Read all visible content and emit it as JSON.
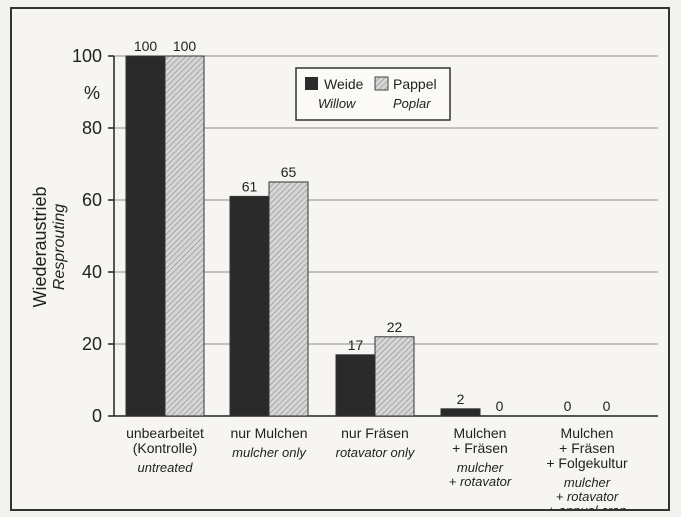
{
  "chart_data": {
    "type": "bar",
    "categories": [
      {
        "lines": [
          "unbearbeitet",
          "(Kontrolle)"
        ],
        "italic": [
          "untreated"
        ]
      },
      {
        "lines": [
          "nur Mulchen"
        ],
        "italic": [
          "mulcher only"
        ]
      },
      {
        "lines": [
          "nur Fräsen"
        ],
        "italic": [
          "rotavator only"
        ]
      },
      {
        "lines": [
          "Mulchen",
          "+ Fräsen"
        ],
        "italic": [
          "mulcher",
          "+ rotavator"
        ]
      },
      {
        "lines": [
          "Mulchen",
          "+ Fräsen",
          "+ Folgekultur"
        ],
        "italic": [
          "mulcher",
          "+ rotavator",
          "+ annual crop"
        ]
      }
    ],
    "series": [
      {
        "name": "Weide",
        "name_en": "Willow",
        "color": "#2a2a2a",
        "values": [
          100,
          61,
          17,
          2,
          0
        ]
      },
      {
        "name": "Pappel",
        "name_en": "Poplar",
        "color": "#c9c9c9",
        "pattern": "hatched",
        "values": [
          100,
          65,
          22,
          0,
          0
        ]
      }
    ],
    "value_labels": [
      [
        "100",
        "61",
        "17",
        "2",
        "0"
      ],
      [
        "100",
        "65",
        "22",
        "0",
        "0"
      ]
    ],
    "ylabel": "Wiederaustrieb",
    "ylabel_en": "Resprouting",
    "yunit": "%",
    "ylim": [
      0,
      100
    ],
    "yticks": [
      0,
      20,
      40,
      60,
      80,
      100
    ],
    "grid": "horizontal",
    "legend_position": "top-center"
  }
}
